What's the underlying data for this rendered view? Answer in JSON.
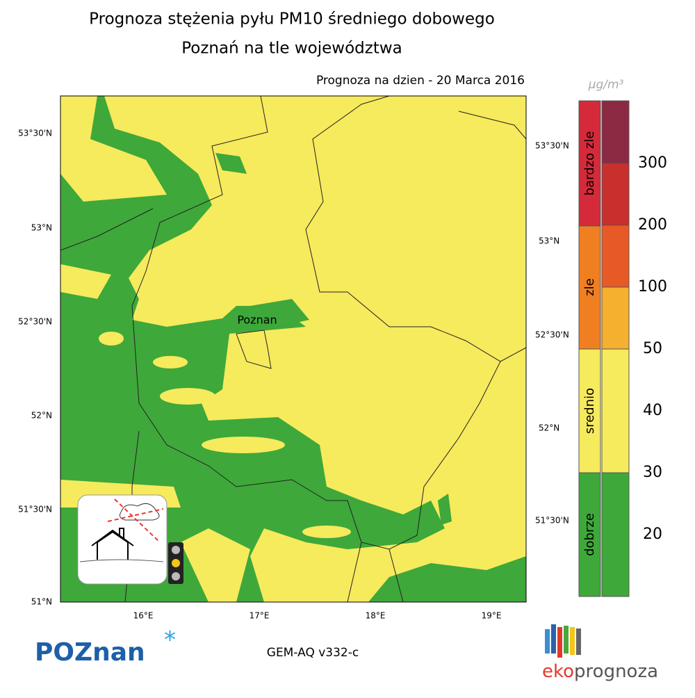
{
  "header": {
    "title_line1": "Prognoza stężenia pyłu PM10 średniego dobowego",
    "title_line2": "Poznań na tle województwa",
    "date": "Prognoza na dzien -  20 Marca 2016"
  },
  "map": {
    "city": "Poznan",
    "lat_labels_left": [
      "53°30'N",
      "53°N",
      "52°30'N",
      "52°N",
      "51°30'N",
      "51°N"
    ],
    "lat_labels_right": [
      "53°30'N",
      "53°N",
      "52°30'N",
      "52°N",
      "51°30'N"
    ],
    "lon_labels": [
      "16°E",
      "17°E",
      "18°E",
      "19°E"
    ]
  },
  "legend": {
    "unit": "μg/m³",
    "categories": [
      "bardzo zle",
      "zle",
      "srednio",
      "dobrze"
    ],
    "levels": [
      "300",
      "200",
      "100",
      "50",
      "40",
      "30",
      "20"
    ]
  },
  "footer": {
    "model": "GEM-AQ v332-c",
    "city_logo": "POZnan",
    "brand_part1": "eko",
    "brand_part2": "prognoza"
  }
}
